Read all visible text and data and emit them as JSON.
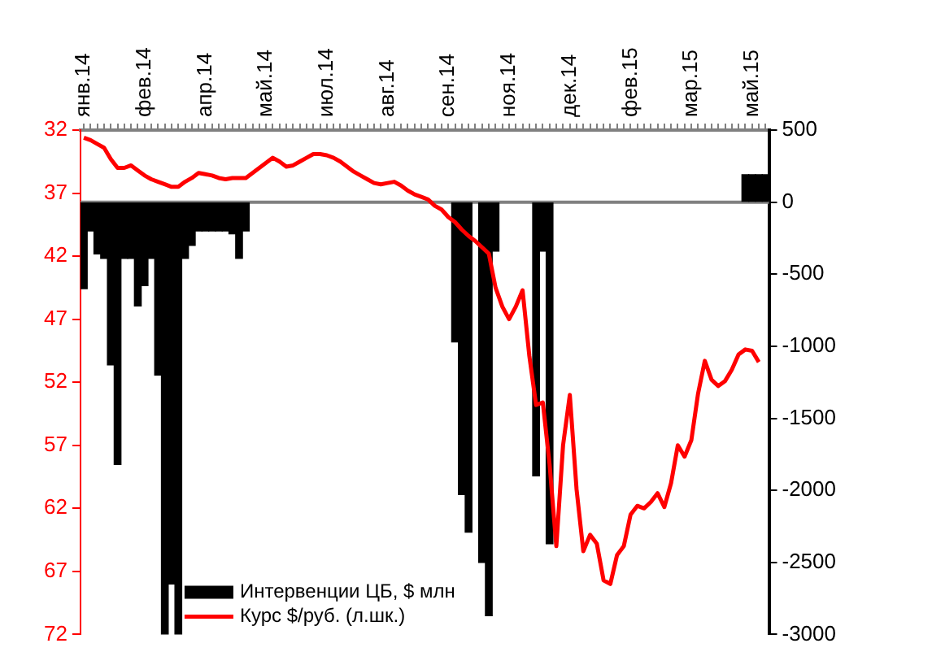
{
  "chart_data": {
    "type": "bar",
    "legend": "bottom",
    "grid": false,
    "categories": [
      "янв.14",
      null,
      null,
      null,
      null,
      null,
      null,
      null,
      null,
      "фев.14",
      null,
      null,
      null,
      null,
      null,
      null,
      null,
      null,
      "апр.14",
      null,
      null,
      null,
      null,
      null,
      null,
      null,
      null,
      "май.14",
      null,
      null,
      null,
      null,
      null,
      null,
      null,
      null,
      "июл.14",
      null,
      null,
      null,
      null,
      null,
      null,
      null,
      null,
      "авг.14",
      null,
      null,
      null,
      null,
      null,
      null,
      null,
      null,
      "сен.14",
      null,
      null,
      null,
      null,
      null,
      null,
      null,
      null,
      "ноя.14",
      null,
      null,
      null,
      null,
      null,
      null,
      null,
      null,
      "дек.14",
      null,
      null,
      null,
      null,
      null,
      null,
      null,
      null,
      "фев.15",
      null,
      null,
      null,
      null,
      null,
      null,
      null,
      null,
      "мар.15",
      null,
      null,
      null,
      null,
      null,
      null,
      null,
      null,
      "май.15",
      null,
      null
    ],
    "ylim": [
      72,
      32
    ],
    "yticks": [
      32,
      37,
      42,
      47,
      52,
      57,
      62,
      67,
      72
    ],
    "y2lim": [
      -3000,
      500
    ],
    "y2ticks": [
      500,
      0,
      -500,
      -1000,
      -1500,
      -2000,
      -2500,
      -3000
    ],
    "ref_lines": [
      {
        "axis": "y2",
        "value": 0,
        "color": "#808080"
      }
    ],
    "series": [
      {
        "name": "Интервенции ЦБ, $ млн",
        "axis": "y2",
        "color": "#000000",
        "values": [
          -600,
          -200,
          -360,
          -390,
          -1130,
          -1820,
          -390,
          -390,
          -720,
          -580,
          -390,
          -1200,
          -3000,
          -2650,
          -3000,
          -390,
          -300,
          -200,
          -200,
          -200,
          -200,
          -200,
          -220,
          -390,
          -200,
          null,
          null,
          null,
          null,
          null,
          null,
          null,
          null,
          null,
          null,
          null,
          null,
          null,
          null,
          null,
          null,
          null,
          null,
          null,
          null,
          null,
          null,
          null,
          null,
          null,
          null,
          null,
          null,
          null,
          null,
          -970,
          -2030,
          -2290,
          null,
          -2500,
          -2870,
          -340,
          null,
          null,
          null,
          null,
          null,
          -1900,
          -340,
          -2370,
          null,
          null,
          null,
          null,
          null,
          null,
          null,
          null,
          null,
          null,
          null,
          null,
          null,
          null,
          null,
          null,
          null,
          null,
          null,
          null,
          null,
          null,
          null,
          null,
          null,
          null,
          null,
          null,
          190,
          190,
          190,
          190
        ]
      },
      {
        "name": "Курс $/руб. (л.шк.)",
        "type": "line",
        "axis": "y",
        "color": "#ff0000",
        "values": [
          32.6,
          32.8,
          33.1,
          33.4,
          34.3,
          35.0,
          35.0,
          34.8,
          35.2,
          35.6,
          35.9,
          36.1,
          36.3,
          36.5,
          36.5,
          36.1,
          35.8,
          35.4,
          35.5,
          35.6,
          35.8,
          35.9,
          35.8,
          35.8,
          35.8,
          35.4,
          35.0,
          34.6,
          34.2,
          34.5,
          34.9,
          34.8,
          34.5,
          34.2,
          33.9,
          33.9,
          34.0,
          34.2,
          34.5,
          34.9,
          35.3,
          35.6,
          35.9,
          36.2,
          36.3,
          36.2,
          36.1,
          36.4,
          36.8,
          37.1,
          37.3,
          37.5,
          38.0,
          38.3,
          38.9,
          39.3,
          39.9,
          40.4,
          40.8,
          41.3,
          41.8,
          44.5,
          46.0,
          47.0,
          46.0,
          44.7,
          49.9,
          53.8,
          53.6,
          58.5,
          65.0,
          57.0,
          53.0,
          60.5,
          65.4,
          64.1,
          64.8,
          67.7,
          68.0,
          65.7,
          65.0,
          62.5,
          61.8,
          62.0,
          61.5,
          60.8,
          61.9,
          60.0,
          57.0,
          57.9,
          56.6,
          52.9,
          50.3,
          51.8,
          52.3,
          51.9,
          51.0,
          49.8,
          49.4,
          49.5,
          50.4,
          null
        ]
      }
    ]
  }
}
